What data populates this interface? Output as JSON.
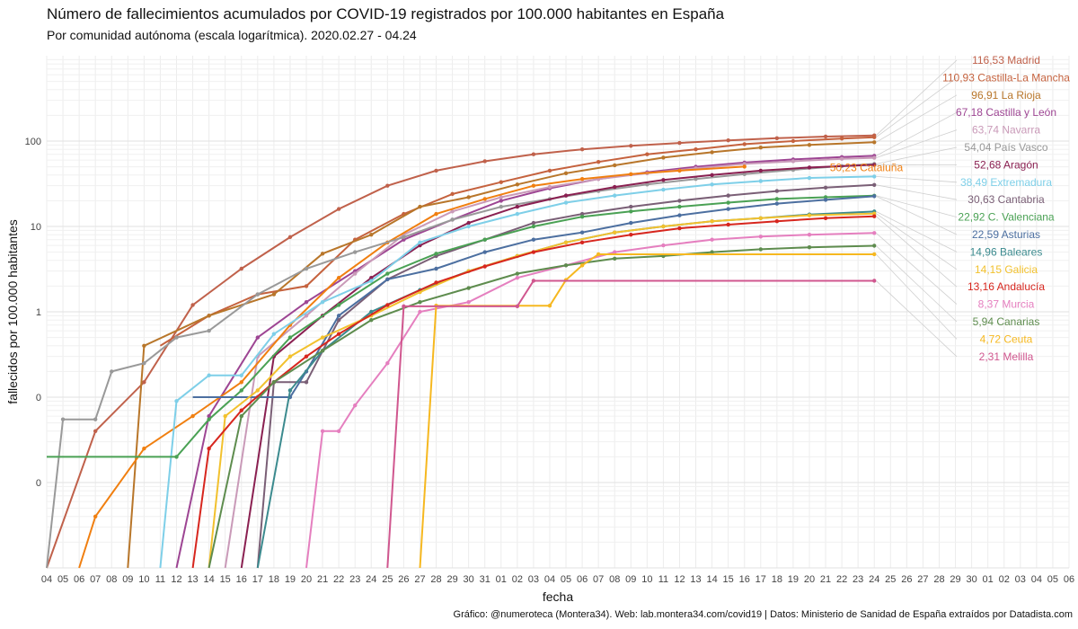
{
  "chart_data": {
    "type": "line",
    "title": "Número de fallecimientos acumulados por COVID-19 registrados por 100.000 habitantes en España",
    "subtitle": "Por comunidad autónoma (escala logarítmica). 2020.02.27 - 04.24",
    "xlabel": "fecha",
    "ylabel": "fallecidos por 100.000 habitantes",
    "caption": "Gráfico: @numeroteca (Montera34). Web: lab.montera34.com/covid19 | Datos: Ministerio de Sanidad de España extraídos por Datadista.com",
    "y_scale": "log",
    "y_ticks": [
      "0",
      "0",
      "1",
      "10",
      "100"
    ],
    "x_ticks": [
      "04",
      "05",
      "06",
      "07",
      "08",
      "09",
      "10",
      "11",
      "12",
      "13",
      "14",
      "15",
      "16",
      "17",
      "18",
      "19",
      "20",
      "21",
      "22",
      "23",
      "24",
      "25",
      "26",
      "27",
      "28",
      "29",
      "30",
      "31",
      "01",
      "02",
      "03",
      "04",
      "05",
      "06",
      "07",
      "08",
      "09",
      "10",
      "11",
      "12",
      "13",
      "14",
      "15",
      "16",
      "17",
      "18",
      "19",
      "20",
      "21",
      "22",
      "23",
      "24",
      "25",
      "26",
      "27",
      "28",
      "29",
      "30",
      "01",
      "02",
      "03",
      "04",
      "05",
      "06"
    ],
    "x_range": [
      "2020-03-04",
      "2020-05-06"
    ],
    "grid": true,
    "legend": "direct labels at line ends (right)",
    "series": [
      {
        "name": "Madrid",
        "end_label": "116,53 Madrid",
        "color": "#c0614b",
        "x": [
          "2020-03-04",
          "2020-03-07",
          "2020-03-10",
          "2020-03-13",
          "2020-03-16",
          "2020-03-19",
          "2020-03-22",
          "2020-03-25",
          "2020-03-28",
          "2020-03-31",
          "2020-04-03",
          "2020-04-06",
          "2020-04-09",
          "2020-04-12",
          "2020-04-15",
          "2020-04-18",
          "2020-04-21",
          "2020-04-24"
        ],
        "values": [
          0.001,
          0.04,
          0.15,
          1.2,
          3.2,
          7.5,
          16,
          30,
          45,
          58,
          70,
          80,
          88,
          95,
          102,
          108,
          113,
          116.53
        ]
      },
      {
        "name": "Castilla-La Mancha",
        "end_label": "110,93 Castilla-La Mancha",
        "color": "#c5623e",
        "x": [
          "2020-03-11",
          "2020-03-14",
          "2020-03-17",
          "2020-03-20",
          "2020-03-23",
          "2020-03-26",
          "2020-03-29",
          "2020-04-01",
          "2020-04-04",
          "2020-04-07",
          "2020-04-10",
          "2020-04-13",
          "2020-04-16",
          "2020-04-19",
          "2020-04-22",
          "2020-04-24"
        ],
        "values": [
          0.4,
          0.9,
          1.6,
          2,
          7,
          14,
          24,
          33,
          45,
          57,
          70,
          80,
          92,
          100,
          107,
          110.93
        ]
      },
      {
        "name": "La Rioja",
        "end_label": "96,91 La Rioja",
        "color": "#b8762a",
        "x": [
          "2020-03-09",
          "2020-03-10",
          "2020-03-14",
          "2020-03-18",
          "2020-03-21",
          "2020-03-24",
          "2020-03-27",
          "2020-03-30",
          "2020-04-02",
          "2020-04-05",
          "2020-04-08",
          "2020-04-11",
          "2020-04-14",
          "2020-04-17",
          "2020-04-20",
          "2020-04-24"
        ],
        "values": [
          0.001,
          0.4,
          0.9,
          1.6,
          4.8,
          8,
          17,
          22,
          31,
          42,
          52,
          64,
          74,
          84,
          90,
          96.91
        ]
      },
      {
        "name": "Castilla y León",
        "end_label": "67,18 Castilla y León",
        "color": "#9d4593",
        "x": [
          "2020-03-12",
          "2020-03-14",
          "2020-03-17",
          "2020-03-20",
          "2020-03-23",
          "2020-03-26",
          "2020-03-29",
          "2020-04-01",
          "2020-04-04",
          "2020-04-07",
          "2020-04-10",
          "2020-04-13",
          "2020-04-16",
          "2020-04-19",
          "2020-04-22",
          "2020-04-24"
        ],
        "values": [
          0.001,
          0.06,
          0.5,
          1.3,
          3,
          7,
          12,
          20,
          28,
          36,
          43,
          50,
          56,
          61,
          65,
          67.18
        ]
      },
      {
        "name": "Navarra",
        "end_label": "63,74 Navarra",
        "color": "#c99ab8",
        "x": [
          "2020-03-15",
          "2020-03-17",
          "2020-03-20",
          "2020-03-23",
          "2020-03-26",
          "2020-03-29",
          "2020-04-01",
          "2020-04-04",
          "2020-04-07",
          "2020-04-10",
          "2020-04-13",
          "2020-04-16",
          "2020-04-19",
          "2020-04-22",
          "2020-04-24"
        ],
        "values": [
          0.001,
          0.3,
          0.9,
          2.8,
          8,
          15,
          22,
          29,
          36,
          42,
          48,
          54,
          58,
          62,
          63.74
        ]
      },
      {
        "name": "Cataluña",
        "end_label": "50,23 Cataluña",
        "color": "#f07f10",
        "x": [
          "2020-03-06",
          "2020-03-07",
          "2020-03-10",
          "2020-03-13",
          "2020-03-16",
          "2020-03-19",
          "2020-03-22",
          "2020-03-25",
          "2020-03-28",
          "2020-03-31",
          "2020-04-03",
          "2020-04-06",
          "2020-04-09",
          "2020-04-12",
          "2020-04-16"
        ],
        "values": [
          0.001,
          0.004,
          0.025,
          0.06,
          0.15,
          0.7,
          2.5,
          6.5,
          14,
          21,
          30,
          36,
          41,
          45,
          50.23
        ]
      },
      {
        "name": "País Vasco",
        "end_label": "54,04 País Vasco",
        "color": "#999999",
        "x": [
          "2020-03-04",
          "2020-03-05",
          "2020-03-07",
          "2020-03-08",
          "2020-03-10",
          "2020-03-12",
          "2020-03-14",
          "2020-03-17",
          "2020-03-20",
          "2020-03-23",
          "2020-03-26",
          "2020-03-29",
          "2020-04-01",
          "2020-04-04",
          "2020-04-07",
          "2020-04-10",
          "2020-04-13",
          "2020-04-16",
          "2020-04-19",
          "2020-04-22",
          "2020-04-24"
        ],
        "values": [
          0.001,
          0.055,
          0.055,
          0.2,
          0.25,
          0.5,
          0.6,
          1.6,
          3.2,
          5,
          7.5,
          12,
          17,
          21,
          26,
          31,
          36,
          41,
          46,
          51,
          54.04
        ]
      },
      {
        "name": "Aragón",
        "end_label": "52,68 Aragón",
        "color": "#8a2051",
        "x": [
          "2020-03-16",
          "2020-03-18",
          "2020-03-21",
          "2020-03-24",
          "2020-03-27",
          "2020-03-30",
          "2020-04-02",
          "2020-04-05",
          "2020-04-08",
          "2020-04-11",
          "2020-04-14",
          "2020-04-17",
          "2020-04-20",
          "2020-04-24"
        ],
        "values": [
          0.001,
          0.3,
          0.9,
          2.5,
          6,
          11,
          17,
          23,
          29,
          35,
          40,
          45,
          49,
          52.68
        ]
      },
      {
        "name": "Extremadura",
        "end_label": "38,49 Extremadura",
        "color": "#7ecfe8",
        "x": [
          "2020-03-11",
          "2020-03-12",
          "2020-03-14",
          "2020-03-16",
          "2020-03-18",
          "2020-03-21",
          "2020-03-24",
          "2020-03-27",
          "2020-03-30",
          "2020-04-02",
          "2020-04-05",
          "2020-04-08",
          "2020-04-11",
          "2020-04-14",
          "2020-04-17",
          "2020-04-20",
          "2020-04-24"
        ],
        "values": [
          0.001,
          0.09,
          0.18,
          0.18,
          0.55,
          1.3,
          2.3,
          6.5,
          10,
          14,
          19,
          23,
          27,
          31,
          34,
          37,
          38.49
        ]
      },
      {
        "name": "Cantabria",
        "end_label": "30,63 Cantabria",
        "color": "#7a5f76",
        "x": [
          "2020-03-17",
          "2020-03-18",
          "2020-03-20",
          "2020-03-22",
          "2020-03-25",
          "2020-03-28",
          "2020-03-31",
          "2020-04-03",
          "2020-04-06",
          "2020-04-09",
          "2020-04-12",
          "2020-04-15",
          "2020-04-18",
          "2020-04-21",
          "2020-04-24"
        ],
        "values": [
          0.001,
          0.15,
          0.15,
          0.8,
          2.4,
          4.5,
          7,
          11,
          14,
          17,
          20,
          23,
          26,
          28.5,
          30.63
        ]
      },
      {
        "name": "C. Valenciana",
        "end_label": "22,92 C. Valenciana",
        "color": "#4aa154",
        "x": [
          "2020-03-04",
          "2020-03-12",
          "2020-03-14",
          "2020-03-16",
          "2020-03-19",
          "2020-03-22",
          "2020-03-25",
          "2020-03-28",
          "2020-03-31",
          "2020-04-03",
          "2020-04-06",
          "2020-04-09",
          "2020-04-12",
          "2020-04-15",
          "2020-04-18",
          "2020-04-21",
          "2020-04-24"
        ],
        "values": [
          0.02,
          0.02,
          0.055,
          0.12,
          0.5,
          1.2,
          2.8,
          4.8,
          7,
          10,
          13,
          15,
          17,
          19,
          21,
          22,
          22.92
        ]
      },
      {
        "name": "Asturias",
        "end_label": "22,59 Asturias",
        "color": "#4c6fa0",
        "x": [
          "2020-03-13",
          "2020-03-17",
          "2020-03-19",
          "2020-03-20",
          "2020-03-22",
          "2020-03-25",
          "2020-03-28",
          "2020-03-31",
          "2020-04-03",
          "2020-04-06",
          "2020-04-09",
          "2020-04-12",
          "2020-04-15",
          "2020-04-18",
          "2020-04-21",
          "2020-04-24"
        ],
        "values": [
          0.1,
          0.1,
          0.1,
          0.2,
          0.9,
          2.4,
          3.2,
          5,
          7,
          8.5,
          11,
          13.5,
          16,
          18.5,
          20.5,
          22.59
        ]
      },
      {
        "name": "Baleares",
        "end_label": "14,96 Baleares",
        "color": "#3b8a8e",
        "x": [
          "2020-03-17",
          "2020-03-19",
          "2020-03-21",
          "2020-03-24",
          "2020-03-27",
          "2020-03-30",
          "2020-04-02",
          "2020-04-05",
          "2020-04-08",
          "2020-04-11",
          "2020-04-14",
          "2020-04-17",
          "2020-04-20",
          "2020-04-24"
        ],
        "values": [
          0.001,
          0.12,
          0.35,
          1,
          1.8,
          3,
          4.5,
          6.5,
          8.5,
          10,
          11.5,
          12.5,
          13.8,
          14.96
        ]
      },
      {
        "name": "Galicia",
        "end_label": "14,15 Galicia",
        "color": "#f2c12e",
        "x": [
          "2020-03-14",
          "2020-03-15",
          "2020-03-17",
          "2020-03-19",
          "2020-03-21",
          "2020-03-24",
          "2020-03-27",
          "2020-03-30",
          "2020-04-02",
          "2020-04-05",
          "2020-04-08",
          "2020-04-11",
          "2020-04-14",
          "2020-04-17",
          "2020-04-20",
          "2020-04-24"
        ],
        "values": [
          0.001,
          0.06,
          0.12,
          0.3,
          0.5,
          0.9,
          1.7,
          3,
          4.5,
          6.5,
          8.5,
          10,
          11.5,
          12.5,
          13.5,
          14.15
        ]
      },
      {
        "name": "Andalucía",
        "end_label": "13,16 Andalucía",
        "color": "#d7261e",
        "x": [
          "2020-03-13",
          "2020-03-14",
          "2020-03-16",
          "2020-03-18",
          "2020-03-20",
          "2020-03-22",
          "2020-03-25",
          "2020-03-28",
          "2020-03-31",
          "2020-04-03",
          "2020-04-06",
          "2020-04-09",
          "2020-04-12",
          "2020-04-15",
          "2020-04-18",
          "2020-04-21",
          "2020-04-24"
        ],
        "values": [
          0.001,
          0.025,
          0.07,
          0.15,
          0.3,
          0.55,
          1.2,
          2.2,
          3.4,
          5,
          6.5,
          8,
          9.5,
          10.5,
          11.5,
          12.5,
          13.16
        ]
      },
      {
        "name": "Murcia",
        "end_label": "8,37 Murcia",
        "color": "#e57fbf",
        "x": [
          "2020-03-20",
          "2020-03-21",
          "2020-03-22",
          "2020-03-23",
          "2020-03-25",
          "2020-03-27",
          "2020-03-30",
          "2020-04-02",
          "2020-04-05",
          "2020-04-08",
          "2020-04-11",
          "2020-04-14",
          "2020-04-17",
          "2020-04-20",
          "2020-04-24"
        ],
        "values": [
          0.001,
          0.04,
          0.04,
          0.08,
          0.25,
          1.0,
          1.3,
          2.5,
          3.5,
          5,
          6,
          7,
          7.6,
          8,
          8.37
        ]
      },
      {
        "name": "Canarias",
        "end_label": "5,94 Canarias",
        "color": "#5e8c4e",
        "x": [
          "2020-03-14",
          "2020-03-16",
          "2020-03-18",
          "2020-03-21",
          "2020-03-24",
          "2020-03-27",
          "2020-03-30",
          "2020-04-02",
          "2020-04-05",
          "2020-04-08",
          "2020-04-11",
          "2020-04-14",
          "2020-04-17",
          "2020-04-20",
          "2020-04-24"
        ],
        "values": [
          0.001,
          0.06,
          0.15,
          0.35,
          0.8,
          1.3,
          1.9,
          2.8,
          3.5,
          4.2,
          4.5,
          5,
          5.4,
          5.7,
          5.94
        ]
      },
      {
        "name": "Ceuta",
        "end_label": "4,72 Ceuta",
        "color": "#f6b820",
        "x": [
          "2020-03-27",
          "2020-03-28",
          "2020-04-04",
          "2020-04-05",
          "2020-04-06",
          "2020-04-07",
          "2020-04-24"
        ],
        "values": [
          0.001,
          1.18,
          1.18,
          2.36,
          3.5,
          4.72,
          4.72
        ]
      },
      {
        "name": "Melilla",
        "end_label": "2,31 Melilla",
        "color": "#d0578f",
        "x": [
          "2020-03-25",
          "2020-03-26",
          "2020-04-02",
          "2020-04-03",
          "2020-04-24"
        ],
        "values": [
          0.001,
          1.16,
          1.16,
          2.31,
          2.31
        ]
      }
    ]
  }
}
